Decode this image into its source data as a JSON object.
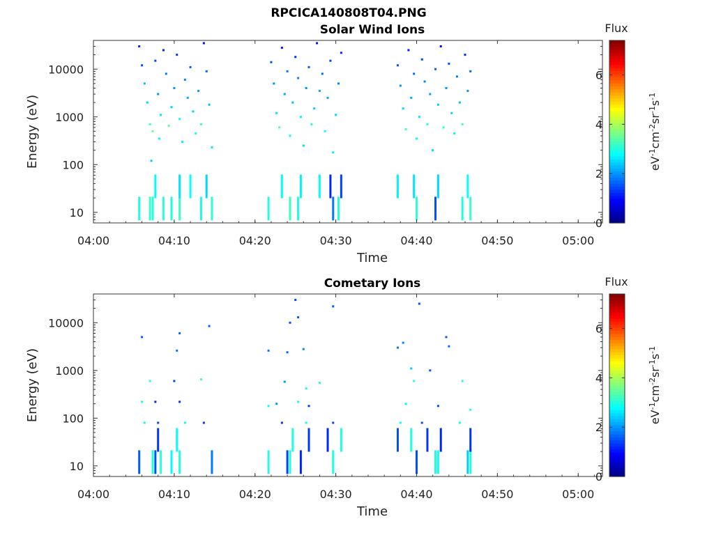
{
  "figure_title": "RPCICA140808T04.PNG",
  "chart_data": [
    {
      "type": "heatmap",
      "title": "Solar Wind Ions",
      "xlabel": "Time",
      "ylabel": "Energy (eV)",
      "x_ticks": [
        "04:00",
        "04:10",
        "04:20",
        "04:30",
        "04:40",
        "04:50",
        "05:00"
      ],
      "xlim": [
        "04:00",
        "05:03"
      ],
      "y_scale": "log",
      "y_ticks": [
        10,
        100,
        1000,
        10000
      ],
      "ylim": [
        6,
        40000
      ],
      "colorbar": {
        "title": "Flux",
        "label": "eV-1cm-2sr-1s-1",
        "ticks": [
          0,
          2,
          4,
          6
        ],
        "range": [
          0,
          7.4
        ],
        "colormap": "jet"
      },
      "series": [
        {
          "x": "04:05:40",
          "y": 30000,
          "v": 1.2
        },
        {
          "x": "04:06:00",
          "y": 12000,
          "v": 1.5
        },
        {
          "x": "04:06:20",
          "y": 5000,
          "v": 2.3
        },
        {
          "x": "04:06:40",
          "y": 2000,
          "v": 2.5
        },
        {
          "x": "04:07:00",
          "y": 700,
          "v": 3.2
        },
        {
          "x": "04:07:20",
          "y": 500,
          "v": 3.5
        },
        {
          "x": "04:07:40",
          "y": 15000,
          "v": 1.4
        },
        {
          "x": "04:08:00",
          "y": 3000,
          "v": 2.0
        },
        {
          "x": "04:08:20",
          "y": 1100,
          "v": 2.6
        },
        {
          "x": "04:08:40",
          "y": 25000,
          "v": 1.1
        },
        {
          "x": "04:09:00",
          "y": 8000,
          "v": 1.8
        },
        {
          "x": "04:09:20",
          "y": 650,
          "v": 3.4
        },
        {
          "x": "04:09:40",
          "y": 1600,
          "v": 2.4
        },
        {
          "x": "04:10:00",
          "y": 4000,
          "v": 2.0
        },
        {
          "x": "04:10:20",
          "y": 20000,
          "v": 1.3
        },
        {
          "x": "04:10:40",
          "y": 900,
          "v": 2.8
        },
        {
          "x": "04:11:00",
          "y": 300,
          "v": 2.7
        },
        {
          "x": "04:11:20",
          "y": 6000,
          "v": 1.9
        },
        {
          "x": "04:11:40",
          "y": 2500,
          "v": 2.2
        },
        {
          "x": "04:12:00",
          "y": 11000,
          "v": 1.6
        },
        {
          "x": "04:12:20",
          "y": 1300,
          "v": 2.5
        },
        {
          "x": "04:12:40",
          "y": 450,
          "v": 2.9
        },
        {
          "x": "04:13:00",
          "y": 3500,
          "v": 2.1
        },
        {
          "x": "04:13:20",
          "y": 700,
          "v": 3.3
        },
        {
          "x": "04:13:40",
          "y": 35000,
          "v": 1.0
        },
        {
          "x": "04:14:00",
          "y": 9000,
          "v": 1.7
        },
        {
          "x": "04:14:20",
          "y": 1800,
          "v": 2.3
        },
        {
          "x": "04:14:40",
          "y": 230,
          "v": 2.6
        },
        {
          "x": "04:07:10",
          "y": 120,
          "v": 2.4
        },
        {
          "x": "04:08:10",
          "y": 350,
          "v": 2.7
        },
        {
          "x": "04:22:00",
          "y": 14000,
          "v": 1.5
        },
        {
          "x": "04:22:20",
          "y": 5000,
          "v": 2.0
        },
        {
          "x": "04:22:40",
          "y": 1200,
          "v": 2.6
        },
        {
          "x": "04:23:00",
          "y": 600,
          "v": 3.3
        },
        {
          "x": "04:23:20",
          "y": 28000,
          "v": 1.1
        },
        {
          "x": "04:23:40",
          "y": 3000,
          "v": 2.1
        },
        {
          "x": "04:24:00",
          "y": 9000,
          "v": 1.8
        },
        {
          "x": "04:24:20",
          "y": 400,
          "v": 2.8
        },
        {
          "x": "04:24:40",
          "y": 2000,
          "v": 2.3
        },
        {
          "x": "04:25:00",
          "y": 18000,
          "v": 1.3
        },
        {
          "x": "04:25:20",
          "y": 6500,
          "v": 1.9
        },
        {
          "x": "04:25:40",
          "y": 1000,
          "v": 2.7
        },
        {
          "x": "04:26:00",
          "y": 250,
          "v": 2.5
        },
        {
          "x": "04:26:20",
          "y": 4000,
          "v": 2.0
        },
        {
          "x": "04:26:40",
          "y": 11000,
          "v": 1.6
        },
        {
          "x": "04:27:00",
          "y": 700,
          "v": 3.1
        },
        {
          "x": "04:27:20",
          "y": 1500,
          "v": 2.4
        },
        {
          "x": "04:27:40",
          "y": 35000,
          "v": 1.0
        },
        {
          "x": "04:28:00",
          "y": 3500,
          "v": 2.2
        },
        {
          "x": "04:28:20",
          "y": 8000,
          "v": 1.7
        },
        {
          "x": "04:28:40",
          "y": 500,
          "v": 2.9
        },
        {
          "x": "04:29:00",
          "y": 2500,
          "v": 2.2
        },
        {
          "x": "04:29:20",
          "y": 15000,
          "v": 1.4
        },
        {
          "x": "04:29:40",
          "y": 180,
          "v": 2.6
        },
        {
          "x": "04:30:00",
          "y": 1100,
          "v": 2.5
        },
        {
          "x": "04:30:20",
          "y": 5000,
          "v": 1.9
        },
        {
          "x": "04:30:40",
          "y": 22000,
          "v": 1.2
        },
        {
          "x": "04:37:40",
          "y": 12000,
          "v": 1.5
        },
        {
          "x": "04:38:00",
          "y": 4500,
          "v": 2.0
        },
        {
          "x": "04:38:20",
          "y": 1500,
          "v": 2.5
        },
        {
          "x": "04:38:40",
          "y": 550,
          "v": 3.2
        },
        {
          "x": "04:39:00",
          "y": 25000,
          "v": 1.1
        },
        {
          "x": "04:39:20",
          "y": 2500,
          "v": 2.2
        },
        {
          "x": "04:39:40",
          "y": 8000,
          "v": 1.7
        },
        {
          "x": "04:40:00",
          "y": 350,
          "v": 2.8
        },
        {
          "x": "04:40:20",
          "y": 1000,
          "v": 2.6
        },
        {
          "x": "04:40:40",
          "y": 16000,
          "v": 1.4
        },
        {
          "x": "04:41:00",
          "y": 5500,
          "v": 1.9
        },
        {
          "x": "04:41:20",
          "y": 700,
          "v": 3.0
        },
        {
          "x": "04:41:40",
          "y": 3000,
          "v": 2.1
        },
        {
          "x": "04:42:00",
          "y": 200,
          "v": 2.5
        },
        {
          "x": "04:42:20",
          "y": 10000,
          "v": 1.6
        },
        {
          "x": "04:42:40",
          "y": 1800,
          "v": 2.4
        },
        {
          "x": "04:43:00",
          "y": 30000,
          "v": 1.0
        },
        {
          "x": "04:43:20",
          "y": 600,
          "v": 3.1
        },
        {
          "x": "04:43:40",
          "y": 4000,
          "v": 2.0
        },
        {
          "x": "04:44:00",
          "y": 13000,
          "v": 1.5
        },
        {
          "x": "04:44:20",
          "y": 1200,
          "v": 2.5
        },
        {
          "x": "04:44:40",
          "y": 450,
          "v": 2.8
        },
        {
          "x": "04:45:00",
          "y": 7000,
          "v": 1.8
        },
        {
          "x": "04:45:20",
          "y": 2000,
          "v": 2.3
        },
        {
          "x": "04:45:40",
          "y": 700,
          "v": 3.2
        },
        {
          "x": "04:46:00",
          "y": 20000,
          "v": 1.2
        },
        {
          "x": "04:46:20",
          "y": 3500,
          "v": 2.0
        },
        {
          "x": "04:46:40",
          "y": 9000,
          "v": 1.7
        },
        {
          "x": "04:05:40",
          "y": 12,
          "v": 3.0
        },
        {
          "x": "04:07:00",
          "y": 12,
          "v": 3.2
        },
        {
          "x": "04:07:20",
          "y": 12,
          "v": 3.0
        },
        {
          "x": "04:08:40",
          "y": 12,
          "v": 3.1
        },
        {
          "x": "04:09:40",
          "y": 12,
          "v": 3.0
        },
        {
          "x": "04:10:40",
          "y": 12,
          "v": 3.2
        },
        {
          "x": "04:13:20",
          "y": 12,
          "v": 3.0
        },
        {
          "x": "04:14:40",
          "y": 12,
          "v": 3.1
        },
        {
          "x": "04:21:40",
          "y": 12,
          "v": 3.0
        },
        {
          "x": "04:24:20",
          "y": 12,
          "v": 3.2
        },
        {
          "x": "04:25:20",
          "y": 12,
          "v": 3.0
        },
        {
          "x": "04:29:40",
          "y": 12,
          "v": 1.8
        },
        {
          "x": "04:30:20",
          "y": 12,
          "v": 3.0
        },
        {
          "x": "04:40:00",
          "y": 12,
          "v": 3.1
        },
        {
          "x": "04:42:20",
          "y": 12,
          "v": 1.5
        },
        {
          "x": "04:45:40",
          "y": 12,
          "v": 3.0
        },
        {
          "x": "04:46:40",
          "y": 12,
          "v": 3.2
        },
        {
          "x": "04:07:40",
          "y": 35,
          "v": 2.8
        },
        {
          "x": "04:10:40",
          "y": 35,
          "v": 2.6
        },
        {
          "x": "04:12:00",
          "y": 35,
          "v": 2.8
        },
        {
          "x": "04:14:00",
          "y": 35,
          "v": 2.5
        },
        {
          "x": "04:23:20",
          "y": 35,
          "v": 2.8
        },
        {
          "x": "04:25:40",
          "y": 35,
          "v": 2.7
        },
        {
          "x": "04:28:00",
          "y": 35,
          "v": 2.8
        },
        {
          "x": "04:29:20",
          "y": 35,
          "v": 1.2
        },
        {
          "x": "04:30:40",
          "y": 35,
          "v": 1.4
        },
        {
          "x": "04:37:40",
          "y": 35,
          "v": 2.7
        },
        {
          "x": "04:39:40",
          "y": 35,
          "v": 2.6
        },
        {
          "x": "04:42:40",
          "y": 35,
          "v": 2.5
        },
        {
          "x": "04:46:20",
          "y": 35,
          "v": 2.8
        }
      ]
    },
    {
      "type": "heatmap",
      "title": "Cometary Ions",
      "xlabel": "Time",
      "ylabel": "Energy (eV)",
      "x_ticks": [
        "04:00",
        "04:10",
        "04:20",
        "04:30",
        "04:40",
        "04:50",
        "05:00"
      ],
      "xlim": [
        "04:00",
        "05:03"
      ],
      "y_scale": "log",
      "y_ticks": [
        10,
        100,
        1000,
        10000
      ],
      "ylim": [
        6,
        40000
      ],
      "colorbar": {
        "title": "Flux",
        "label": "eV-1cm-2sr-1s-1",
        "ticks": [
          0,
          2,
          4,
          6
        ],
        "range": [
          0,
          7.4
        ],
        "colormap": "jet"
      },
      "series": [
        {
          "x": "04:06:00",
          "y": 5000,
          "v": 1.6
        },
        {
          "x": "04:10:20",
          "y": 2600,
          "v": 1.8
        },
        {
          "x": "04:10:40",
          "y": 6000,
          "v": 1.7
        },
        {
          "x": "04:14:20",
          "y": 8500,
          "v": 1.6
        },
        {
          "x": "04:21:40",
          "y": 2600,
          "v": 1.8
        },
        {
          "x": "04:24:00",
          "y": 2400,
          "v": 1.7
        },
        {
          "x": "04:24:20",
          "y": 10000,
          "v": 1.5
        },
        {
          "x": "04:25:00",
          "y": 30000,
          "v": 1.5
        },
        {
          "x": "04:25:20",
          "y": 13000,
          "v": 1.6
        },
        {
          "x": "04:26:00",
          "y": 2800,
          "v": 1.9
        },
        {
          "x": "04:29:40",
          "y": 22000,
          "v": 1.6
        },
        {
          "x": "04:37:40",
          "y": 3000,
          "v": 1.8
        },
        {
          "x": "04:38:20",
          "y": 3800,
          "v": 1.9
        },
        {
          "x": "04:40:20",
          "y": 25000,
          "v": 1.5
        },
        {
          "x": "04:43:40",
          "y": 5000,
          "v": 1.6
        },
        {
          "x": "04:44:00",
          "y": 3200,
          "v": 1.7
        },
        {
          "x": "04:07:00",
          "y": 600,
          "v": 3.0
        },
        {
          "x": "04:10:00",
          "y": 600,
          "v": 1.4
        },
        {
          "x": "04:13:20",
          "y": 650,
          "v": 3.2
        },
        {
          "x": "04:23:40",
          "y": 580,
          "v": 2.0
        },
        {
          "x": "04:26:20",
          "y": 420,
          "v": 3.0
        },
        {
          "x": "04:28:00",
          "y": 550,
          "v": 3.1
        },
        {
          "x": "04:39:20",
          "y": 1100,
          "v": 2.4
        },
        {
          "x": "04:39:40",
          "y": 600,
          "v": 3.0
        },
        {
          "x": "04:41:40",
          "y": 1000,
          "v": 1.5
        },
        {
          "x": "04:45:40",
          "y": 600,
          "v": 3.0
        },
        {
          "x": "04:06:00",
          "y": 220,
          "v": 3.0
        },
        {
          "x": "04:07:40",
          "y": 220,
          "v": 1.2
        },
        {
          "x": "04:10:40",
          "y": 220,
          "v": 1.3
        },
        {
          "x": "04:21:40",
          "y": 180,
          "v": 2.8
        },
        {
          "x": "04:22:40",
          "y": 200,
          "v": 2.0
        },
        {
          "x": "04:25:20",
          "y": 220,
          "v": 2.9
        },
        {
          "x": "04:26:40",
          "y": 180,
          "v": 1.3
        },
        {
          "x": "04:38:40",
          "y": 200,
          "v": 2.8
        },
        {
          "x": "04:42:40",
          "y": 180,
          "v": 1.5
        },
        {
          "x": "04:46:40",
          "y": 150,
          "v": 3.0
        },
        {
          "x": "04:06:20",
          "y": 80,
          "v": 2.9
        },
        {
          "x": "04:08:00",
          "y": 80,
          "v": 1.4
        },
        {
          "x": "04:11:20",
          "y": 80,
          "v": 2.8
        },
        {
          "x": "04:13:40",
          "y": 80,
          "v": 1.3
        },
        {
          "x": "04:23:20",
          "y": 80,
          "v": 1.3
        },
        {
          "x": "04:26:20",
          "y": 80,
          "v": 2.9
        },
        {
          "x": "04:29:40",
          "y": 80,
          "v": 1.4
        },
        {
          "x": "04:38:00",
          "y": 80,
          "v": 2.8
        },
        {
          "x": "04:40:40",
          "y": 80,
          "v": 1.5
        },
        {
          "x": "04:45:20",
          "y": 80,
          "v": 2.8
        },
        {
          "x": "04:05:40",
          "y": 12,
          "v": 1.6
        },
        {
          "x": "04:07:20",
          "y": 12,
          "v": 3.0
        },
        {
          "x": "04:07:40",
          "y": 12,
          "v": 1.5
        },
        {
          "x": "04:08:20",
          "y": 12,
          "v": 3.1
        },
        {
          "x": "04:09:40",
          "y": 12,
          "v": 2.8
        },
        {
          "x": "04:10:40",
          "y": 12,
          "v": 3.0
        },
        {
          "x": "04:14:40",
          "y": 12,
          "v": 1.8
        },
        {
          "x": "04:21:40",
          "y": 12,
          "v": 3.0
        },
        {
          "x": "04:24:00",
          "y": 12,
          "v": 1.4
        },
        {
          "x": "04:24:20",
          "y": 12,
          "v": 3.0
        },
        {
          "x": "04:25:40",
          "y": 12,
          "v": 1.2
        },
        {
          "x": "04:29:40",
          "y": 12,
          "v": 3.0
        },
        {
          "x": "04:40:00",
          "y": 12,
          "v": 1.5
        },
        {
          "x": "04:42:20",
          "y": 12,
          "v": 3.0
        },
        {
          "x": "04:42:40",
          "y": 12,
          "v": 2.9
        },
        {
          "x": "04:46:20",
          "y": 12,
          "v": 2.4
        },
        {
          "x": "04:46:40",
          "y": 12,
          "v": 3.0
        },
        {
          "x": "04:08:00",
          "y": 35,
          "v": 1.3
        },
        {
          "x": "04:10:20",
          "y": 35,
          "v": 2.8
        },
        {
          "x": "04:24:40",
          "y": 35,
          "v": 3.0
        },
        {
          "x": "04:26:40",
          "y": 35,
          "v": 1.3
        },
        {
          "x": "04:29:00",
          "y": 35,
          "v": 1.2
        },
        {
          "x": "04:30:40",
          "y": 35,
          "v": 3.0
        },
        {
          "x": "04:37:40",
          "y": 35,
          "v": 1.5
        },
        {
          "x": "04:39:20",
          "y": 35,
          "v": 3.0
        },
        {
          "x": "04:41:20",
          "y": 35,
          "v": 1.3
        },
        {
          "x": "04:43:00",
          "y": 35,
          "v": 1.2
        },
        {
          "x": "04:46:40",
          "y": 35,
          "v": 1.3
        }
      ]
    }
  ]
}
